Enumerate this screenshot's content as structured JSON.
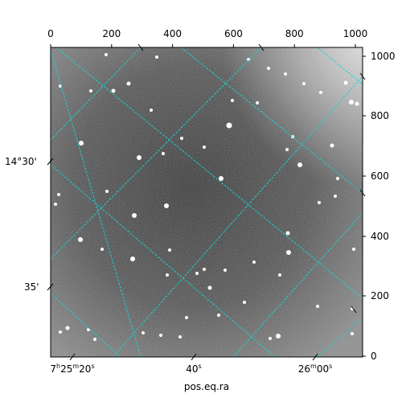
{
  "image": {
    "description_type": "astronomical grayscale image with celestial coordinate grid",
    "grid_color": "#19d3d3",
    "background_tone": "#5a5a5a"
  },
  "axes": {
    "top_ticks": [
      "0",
      "200",
      "400",
      "600",
      "800",
      "1000"
    ],
    "right_ticks": [
      "0",
      "200",
      "400",
      "600",
      "800",
      "1000"
    ],
    "bottom_ticks": [
      {
        "pre": "7",
        "s1": "h",
        "mid": "25",
        "s2": "m",
        "sec": "20",
        "s3": "s"
      },
      {
        "pre": "40",
        "s1": "s",
        "mid": "",
        "s2": "",
        "sec": "",
        "s3": ""
      },
      {
        "pre": "26",
        "s1": "m",
        "mid": "00",
        "s2": "s",
        "sec": "",
        "s3": ""
      }
    ],
    "left_ticks": [
      "14°30'",
      "35'"
    ],
    "xlabel": "pos.eq.ra"
  }
}
